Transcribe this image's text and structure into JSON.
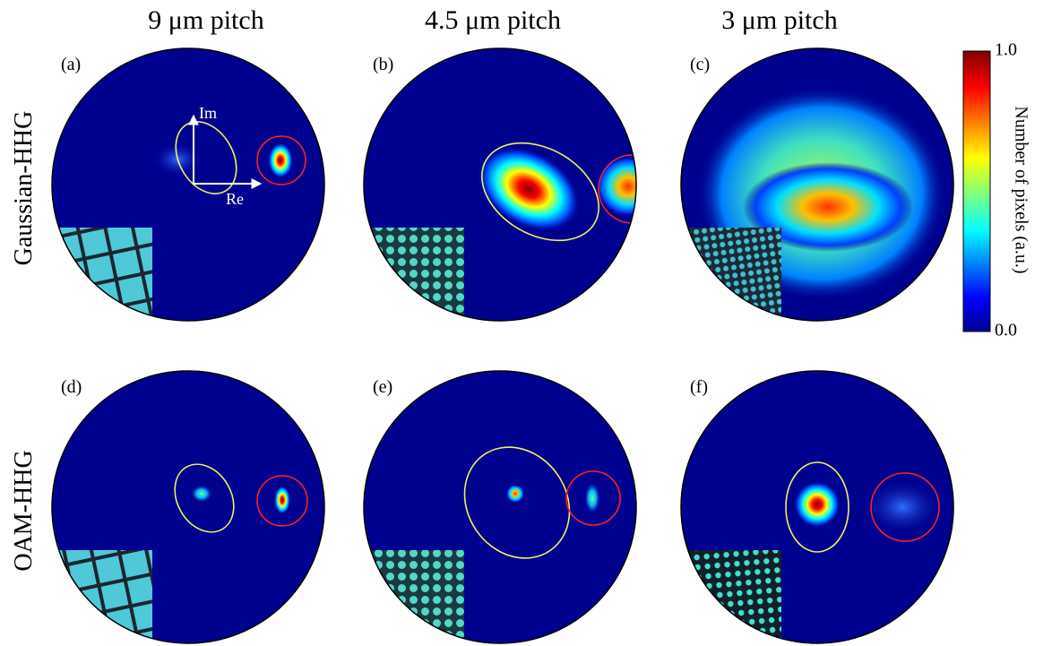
{
  "columns": [
    "9 μm pitch",
    "4.5 μm pitch",
    "3 μm pitch"
  ],
  "rows": [
    "Gaussian-HHG",
    "OAM-HHG"
  ],
  "panels": [
    "(a)",
    "(b)",
    "(c)",
    "(d)",
    "(e)",
    "(f)"
  ],
  "axes": {
    "imaginary": "Im",
    "real": "Re"
  },
  "colorbar": {
    "label": "Number of pixels (a.u.)",
    "lim": [
      0,
      1
    ],
    "ticks": [
      {
        "value": 0,
        "label": "0.0"
      },
      {
        "value": 1,
        "label": "1.0"
      }
    ]
  }
}
